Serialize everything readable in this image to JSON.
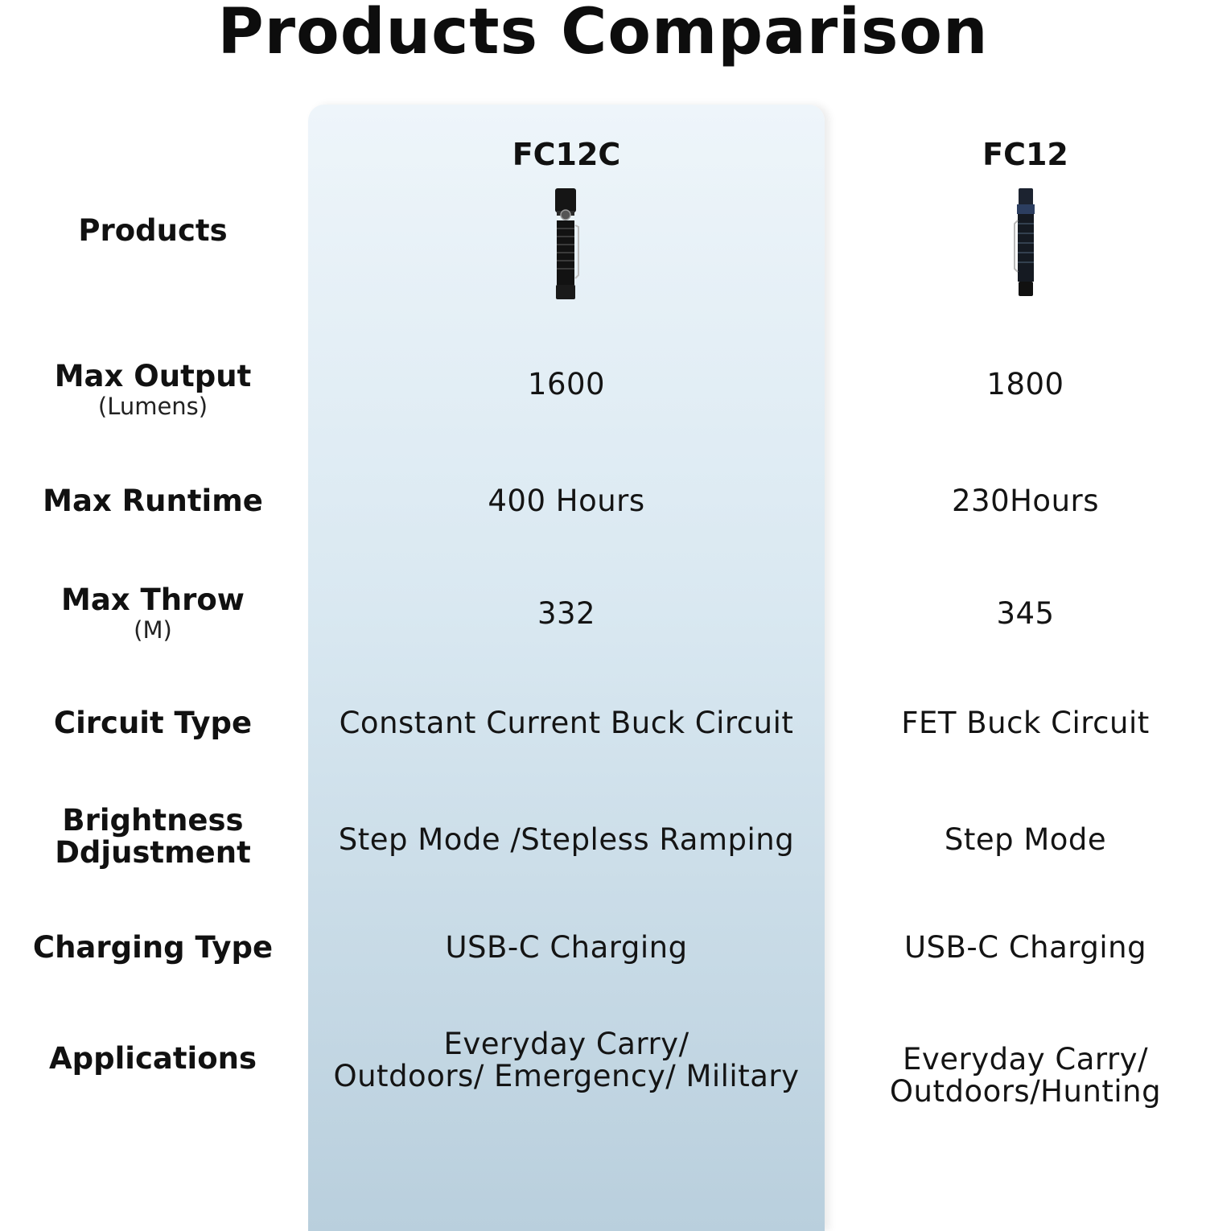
{
  "title": "Products Comparison",
  "products": [
    {
      "name": "FC12C",
      "image": "flashlight-fc12c"
    },
    {
      "name": "FC12",
      "image": "flashlight-fc12"
    }
  ],
  "rows": [
    {
      "label": "Products",
      "sub": ""
    },
    {
      "label": "Max Output",
      "sub": "(Lumens)",
      "values": [
        "1600",
        "1800"
      ]
    },
    {
      "label": "Max Runtime",
      "sub": "",
      "values": [
        "400 Hours",
        "230Hours"
      ]
    },
    {
      "label": "Max Throw",
      "sub": "(M)",
      "values": [
        "332",
        "345"
      ]
    },
    {
      "label": "Circuit Type",
      "sub": "",
      "values": [
        "Constant Current Buck Circuit",
        "FET Buck Circuit"
      ]
    },
    {
      "label": "Brightness",
      "label2": "Ddjustment",
      "sub": "",
      "values": [
        "Step Mode /Stepless Ramping",
        "Step Mode"
      ]
    },
    {
      "label": "Charging Type",
      "sub": "",
      "values": [
        "USB-C Charging",
        "USB-C Charging"
      ]
    },
    {
      "label": "Applications",
      "sub": "",
      "values": [
        [
          "Everyday Carry/",
          "Outdoors/ Emergency/ Military"
        ],
        [
          "Everyday Carry/",
          "Outdoors/Hunting"
        ]
      ]
    }
  ]
}
